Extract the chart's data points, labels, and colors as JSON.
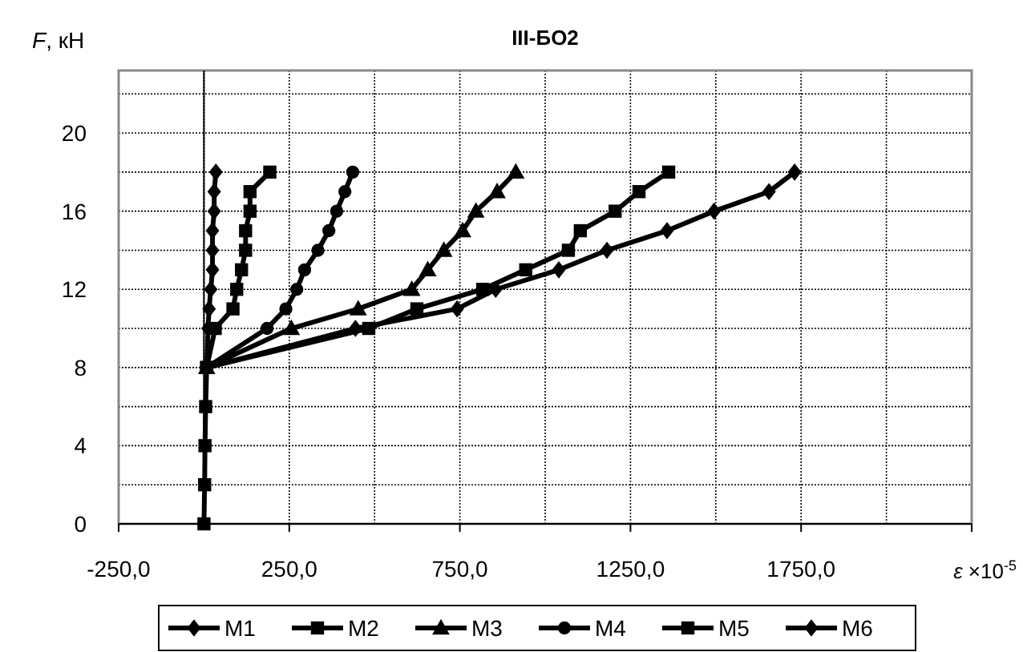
{
  "chart_data": {
    "type": "line",
    "title": "III-БО2",
    "xlabel": "ε ×10$^{-5}$",
    "ylabel": "F, кН",
    "xlim": [
      -250,
      2250
    ],
    "xticks": [
      {
        "value": -250,
        "label": "-250,0"
      },
      {
        "value": 250,
        "label": "250,0"
      },
      {
        "value": 750,
        "label": "750,0"
      },
      {
        "value": 1250,
        "label": "1250,0"
      },
      {
        "value": 1750,
        "label": "1750,0"
      },
      {
        "value": 2250,
        "label": null
      }
    ],
    "ylim": [
      0,
      23.2
    ],
    "yticks": [
      0,
      {
        "value": 2,
        "label": null
      },
      4,
      {
        "value": 6,
        "label": null
      },
      8,
      {
        "value": 10,
        "label": null
      },
      12,
      {
        "value": 14,
        "label": null
      },
      16,
      {
        "value": 18,
        "label": null
      },
      20,
      {
        "value": 22,
        "label": null
      }
    ],
    "grid": true,
    "legend": "bottom",
    "line_style": "solid",
    "series": [
      {
        "name": "M1",
        "color": "#000000",
        "marker": "diamond",
        "x": [
          1731,
          1656,
          1495,
          1357,
          1181,
          1040,
          855,
          742,
          444,
          8
        ],
        "values": [
          18,
          17,
          16,
          15,
          14,
          13,
          12,
          11,
          10,
          8
        ]
      },
      {
        "name": "M2",
        "color": "#010101",
        "marker": "square",
        "x": [
          0,
          2,
          3,
          5,
          8,
          483,
          624,
          817,
          943,
          1068,
          1103,
          1205,
          1275,
          1362
        ],
        "values": [
          0,
          2,
          4,
          6,
          8,
          10,
          11,
          12,
          13,
          14,
          15,
          16,
          17,
          18
        ]
      },
      {
        "name": "M3",
        "color": "#020202",
        "marker": "triangle",
        "x": [
          914,
          859,
          797,
          758,
          703,
          656,
          609,
          452,
          256,
          8
        ],
        "values": [
          18,
          17,
          16,
          15,
          14,
          13,
          12,
          11,
          10,
          8
        ]
      },
      {
        "name": "M4",
        "color": "#030303",
        "marker": "circle",
        "x": [
          436,
          413,
          389,
          366,
          334,
          295,
          272,
          240,
          185,
          8
        ],
        "values": [
          18,
          17,
          16,
          15,
          14,
          13,
          12,
          11,
          10,
          8
        ]
      },
      {
        "name": "M5",
        "color": "#040404",
        "marker": "square",
        "x": [
          193,
          135,
          135,
          122,
          122,
          110,
          96,
          85,
          33,
          8
        ],
        "values": [
          18,
          17,
          16,
          15,
          14,
          13,
          12,
          11,
          10,
          8
        ]
      },
      {
        "name": "M6",
        "color": "#050505",
        "marker": "diamond",
        "x": [
          35,
          30,
          30,
          25,
          25,
          25,
          20,
          15,
          12,
          8
        ],
        "values": [
          18,
          17,
          16,
          15,
          14,
          13,
          12,
          11,
          10,
          8
        ]
      }
    ]
  }
}
